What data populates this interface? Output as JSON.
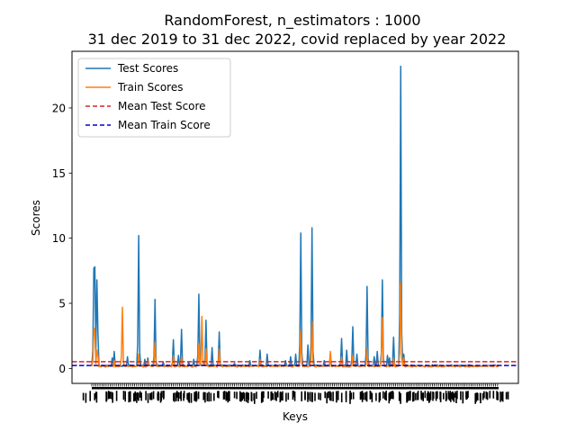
{
  "chart_data": {
    "type": "line",
    "title_line1": "RandomForest, n_estimators : 1000",
    "title_line2": "31 dec 2019 to  31 dec 2022, covid replaced by year 2022",
    "xlabel": "Keys",
    "ylabel": "Scores",
    "ylim": [
      -1.15,
      24.35
    ],
    "y_ticks": [
      0,
      5,
      10,
      15,
      20
    ],
    "n_points": 400,
    "x_tick_labels_note": "dense overlapping key labels (unreadable)",
    "grid": false,
    "legend_position": "upper-left",
    "series": [
      {
        "name": "Test Scores",
        "color": "#1f77b4",
        "baseline": 0.15,
        "peaks": [
          [
            2,
            7.7
          ],
          [
            3,
            7.8
          ],
          [
            5,
            6.8
          ],
          [
            6,
            2.8
          ],
          [
            20,
            0.8
          ],
          [
            22,
            1.3
          ],
          [
            35,
            0.9
          ],
          [
            46,
            10.2
          ],
          [
            52,
            0.7
          ],
          [
            55,
            0.8
          ],
          [
            62,
            5.3
          ],
          [
            70,
            0.5
          ],
          [
            80,
            2.2
          ],
          [
            85,
            1.0
          ],
          [
            88,
            3.0
          ],
          [
            95,
            0.5
          ],
          [
            100,
            0.7
          ],
          [
            105,
            5.7
          ],
          [
            112,
            3.7
          ],
          [
            118,
            1.6
          ],
          [
            125,
            2.8
          ],
          [
            140,
            0.4
          ],
          [
            155,
            0.6
          ],
          [
            165,
            1.4
          ],
          [
            172,
            1.1
          ],
          [
            180,
            0.3
          ],
          [
            190,
            0.6
          ],
          [
            195,
            0.9
          ],
          [
            200,
            1.1
          ],
          [
            205,
            10.4
          ],
          [
            212,
            1.8
          ],
          [
            216,
            10.8
          ],
          [
            228,
            0.6
          ],
          [
            234,
            0.9
          ],
          [
            245,
            2.3
          ],
          [
            250,
            1.4
          ],
          [
            256,
            3.2
          ],
          [
            260,
            1.1
          ],
          [
            270,
            6.3
          ],
          [
            277,
            0.9
          ],
          [
            280,
            1.3
          ],
          [
            285,
            6.8
          ],
          [
            290,
            1.0
          ],
          [
            292,
            0.8
          ],
          [
            296,
            2.4
          ],
          [
            303,
            23.2
          ],
          [
            306,
            1.1
          ]
        ]
      },
      {
        "name": "Train Scores",
        "color": "#ff7f0e",
        "baseline": 0.1,
        "peaks": [
          [
            2,
            3.1
          ],
          [
            3,
            2.9
          ],
          [
            5,
            1.4
          ],
          [
            6,
            1.0
          ],
          [
            22,
            0.6
          ],
          [
            30,
            4.7
          ],
          [
            46,
            1.1
          ],
          [
            55,
            0.6
          ],
          [
            62,
            2.0
          ],
          [
            80,
            1.0
          ],
          [
            88,
            0.9
          ],
          [
            105,
            1.9
          ],
          [
            108,
            4.0
          ],
          [
            112,
            1.5
          ],
          [
            125,
            1.5
          ],
          [
            165,
            0.7
          ],
          [
            205,
            2.9
          ],
          [
            216,
            3.6
          ],
          [
            234,
            1.3
          ],
          [
            245,
            0.9
          ],
          [
            256,
            1.0
          ],
          [
            270,
            1.5
          ],
          [
            285,
            3.9
          ],
          [
            296,
            0.8
          ],
          [
            303,
            6.6
          ],
          [
            306,
            0.8
          ]
        ]
      },
      {
        "name": "Mean Test Score",
        "color": "#d62728",
        "style": "dashed",
        "value": 0.52
      },
      {
        "name": "Mean Train Score",
        "color": "#0000cd",
        "style": "dashed",
        "value": 0.22
      }
    ]
  }
}
